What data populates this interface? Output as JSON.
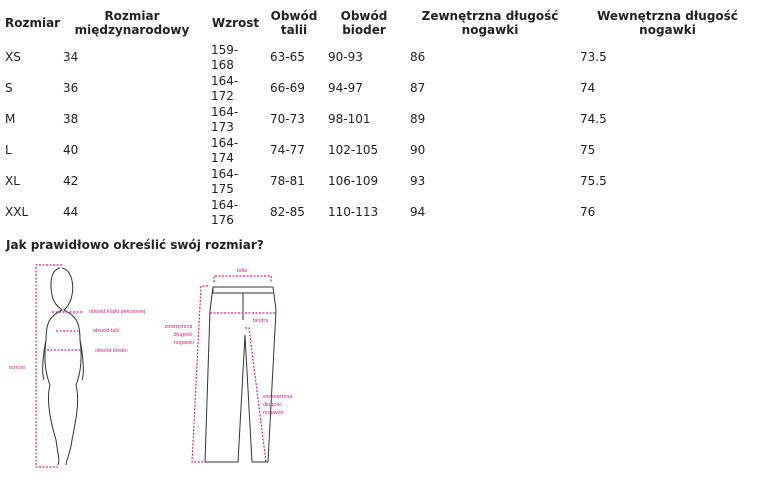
{
  "table": {
    "headers": [
      "Rozmiar",
      "Rozmiar międzynarodowy",
      "Wzrost",
      "Obwód talii",
      "Obwód bioder",
      "Zewnętrzna długość nogawki",
      "Wewnętrzna długość nogawki"
    ],
    "rows": [
      [
        "XS",
        "34",
        "159-168",
        "63-65",
        "90-93",
        "86",
        "73.5"
      ],
      [
        "S",
        "36",
        "164-172",
        "66-69",
        "94-97",
        "87",
        "74"
      ],
      [
        "M",
        "38",
        "164-173",
        "70-73",
        "98-101",
        "89",
        "74.5"
      ],
      [
        "L",
        "40",
        "164-174",
        "74-77",
        "102-105",
        "90",
        "75"
      ],
      [
        "XL",
        "42",
        "164-175",
        "78-81",
        "106-109",
        "93",
        "75.5"
      ],
      [
        "XXL",
        "44",
        "164-176",
        "82-85",
        "110-113",
        "94",
        "76"
      ]
    ]
  },
  "guide": {
    "heading": "Jak prawidłowo określić swój rozmiar?",
    "figure_labels": {
      "chest": "obwód klatki piersiowej",
      "waist": "obwód talii",
      "hips": "obwód bioder",
      "height": "wzrost"
    },
    "pants_labels": {
      "waist": "talia",
      "hips": "biodra",
      "outer_leg": [
        "zewnętrzna",
        "długość",
        "nogawki"
      ],
      "inner_leg": [
        "wewnętrzna",
        "długość",
        "nogawki"
      ]
    },
    "accent_color": "#d02a8a"
  }
}
